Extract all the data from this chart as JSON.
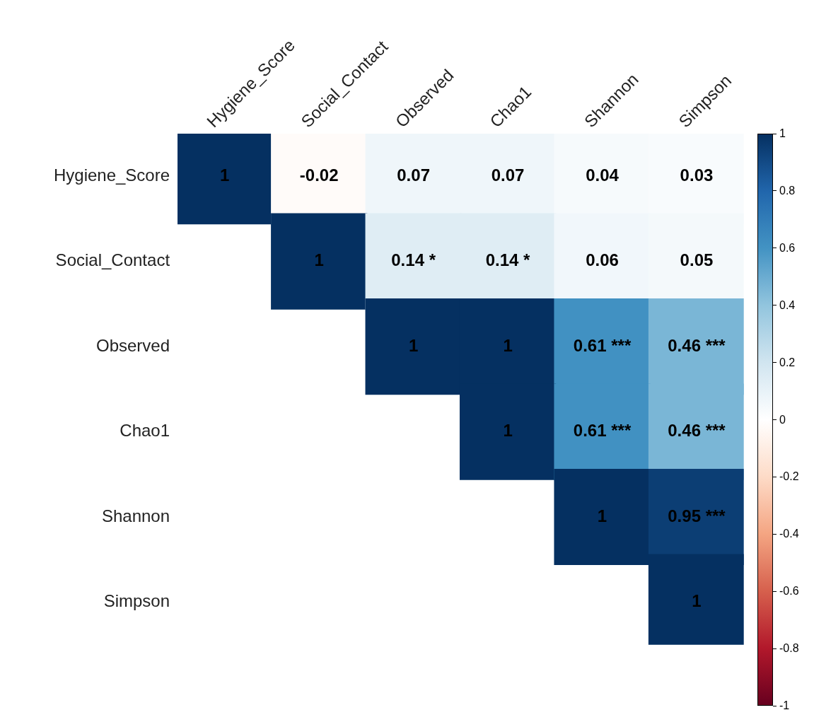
{
  "chart_data": {
    "type": "heatmap",
    "categories": [
      "Hygiene_Score",
      "Social_Contact",
      "Observed",
      "Chao1",
      "Shannon",
      "Simpson"
    ],
    "y_categories": [
      "Hygiene_Score",
      "Social_Contact",
      "Observed",
      "Chao1",
      "Shannon",
      "Simpson"
    ],
    "cells": [
      [
        1,
        -0.02,
        0.07,
        0.07,
        0.04,
        0.03
      ],
      [
        null,
        1,
        0.14,
        0.14,
        0.06,
        0.05
      ],
      [
        null,
        null,
        1,
        1,
        0.61,
        0.46
      ],
      [
        null,
        null,
        null,
        1,
        0.61,
        0.46
      ],
      [
        null,
        null,
        null,
        null,
        1,
        0.95
      ],
      [
        null,
        null,
        null,
        null,
        null,
        1
      ]
    ],
    "cell_labels": [
      [
        "1",
        "-0.02",
        "0.07",
        "0.07",
        "0.04",
        "0.03"
      ],
      [
        null,
        "1",
        "0.14 *",
        "0.14 *",
        "0.06",
        "0.05"
      ],
      [
        null,
        null,
        "1",
        "1",
        "0.61 ***",
        "0.46 ***"
      ],
      [
        null,
        null,
        null,
        "1",
        "0.61 ***",
        "0.46 ***"
      ],
      [
        null,
        null,
        null,
        null,
        "1",
        "0.95 ***"
      ],
      [
        null,
        null,
        null,
        null,
        null,
        "1"
      ]
    ],
    "clim": [
      -1,
      1
    ],
    "cticks": [
      {
        "value": -1,
        "label": "-1"
      },
      {
        "value": -0.8,
        "label": "-0.8"
      },
      {
        "value": -0.6,
        "label": "-0.6"
      },
      {
        "value": -0.4,
        "label": "-0.4"
      },
      {
        "value": -0.2,
        "label": "-0.2"
      },
      {
        "value": 0,
        "label": "0"
      },
      {
        "value": 0.2,
        "label": "0.2"
      },
      {
        "value": 0.4,
        "label": "0.4"
      },
      {
        "value": 0.6,
        "label": "0.6"
      },
      {
        "value": 0.8,
        "label": "0.8"
      },
      {
        "value": 1,
        "label": "1"
      }
    ]
  }
}
